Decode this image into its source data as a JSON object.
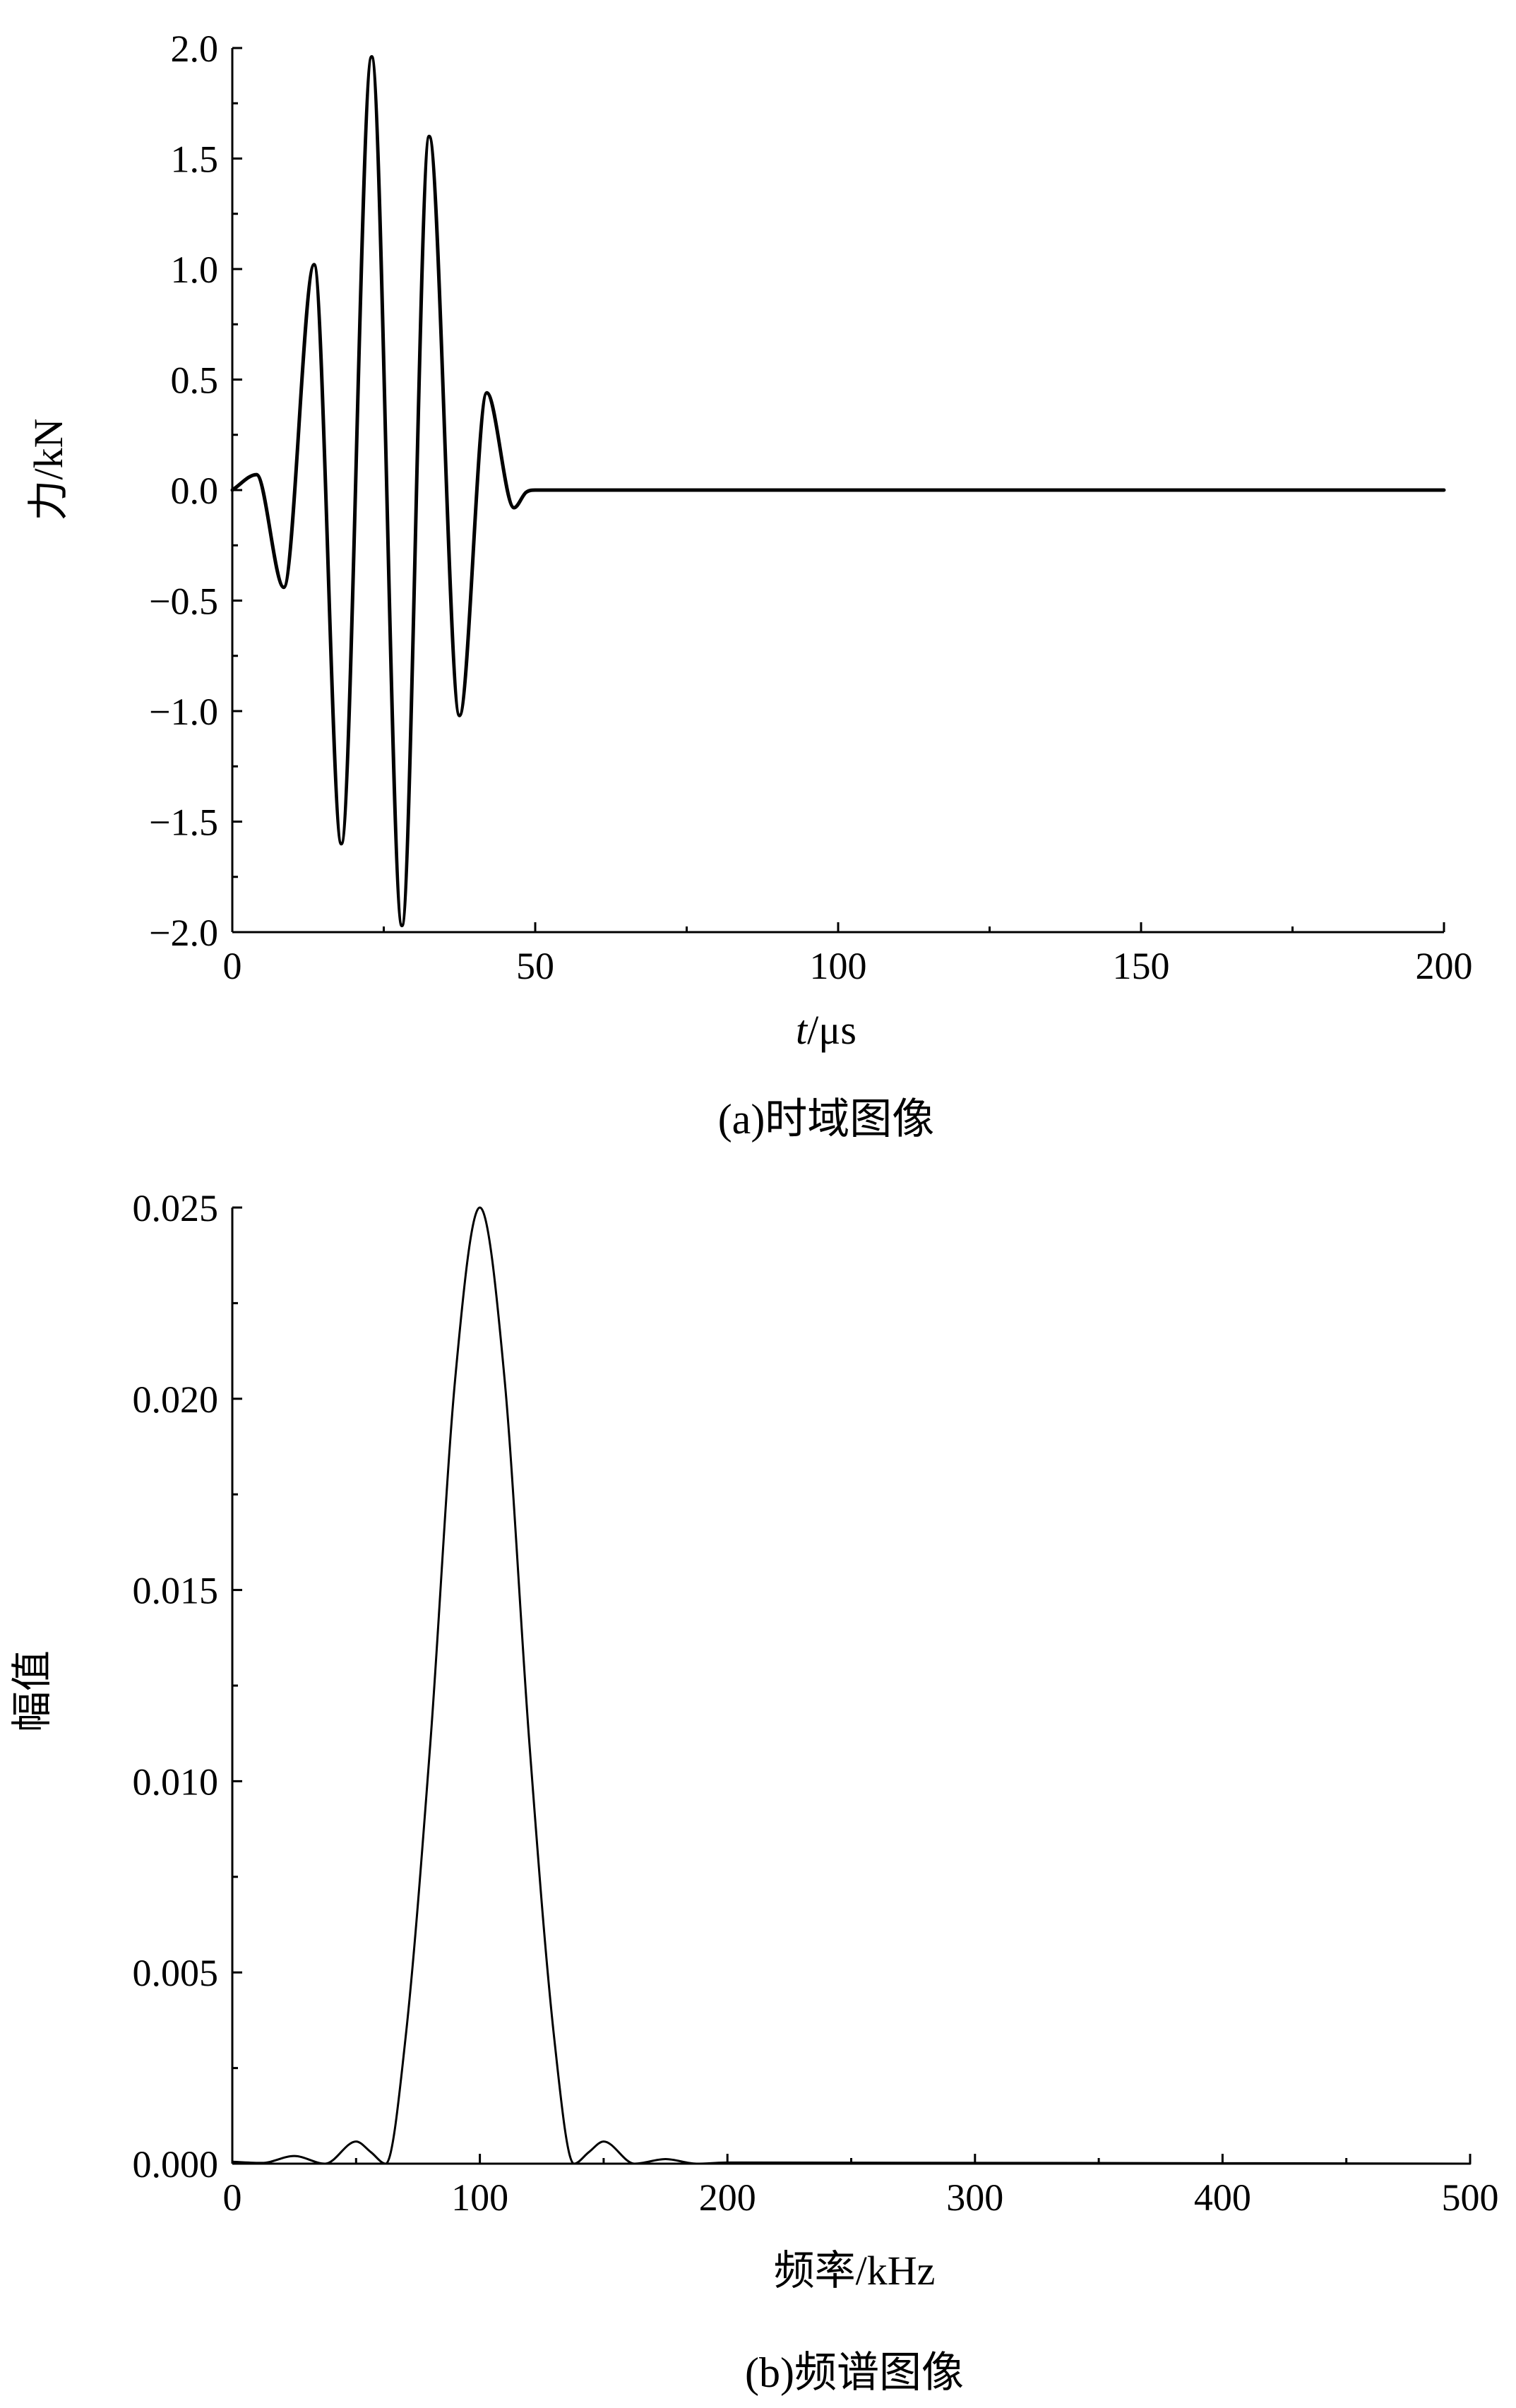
{
  "chart_data": [
    {
      "type": "line",
      "caption": "(a)时域图像",
      "xlabel_italic": "t",
      "xlabel_rest": "/μs",
      "ylabel": "力/kN",
      "xlim": [
        0,
        200
      ],
      "ylim": [
        -2.0,
        2.0
      ],
      "x_ticks": [
        0,
        50,
        100,
        150,
        200
      ],
      "x_tick_labels": [
        "0",
        "50",
        "100",
        "150",
        "200"
      ],
      "y_ticks": [
        -2.0,
        -1.5,
        -1.0,
        -0.5,
        0.0,
        0.5,
        1.0,
        1.5,
        2.0
      ],
      "y_tick_labels": [
        "−2.0",
        "−1.5",
        "−1.0",
        "−0.5",
        "0.0",
        "0.5",
        "1.0",
        "1.5",
        "2.0"
      ],
      "grid": false,
      "series": [
        {
          "x": [
            0,
            4,
            8.5,
            13.5,
            18,
            23,
            28,
            32.5,
            37.5,
            42,
            46.5,
            48.5,
            50,
            200
          ],
          "y": [
            0.0,
            0.07,
            -0.44,
            1.02,
            -1.6,
            1.96,
            -1.97,
            1.6,
            -1.02,
            0.44,
            -0.08,
            -0.01,
            0.0,
            0.0
          ]
        }
      ]
    },
    {
      "type": "line",
      "caption": "(b)频谱图像",
      "xlabel": "频率/kHz",
      "ylabel": "幅值",
      "xlim": [
        0,
        500
      ],
      "ylim": [
        0.0,
        0.025
      ],
      "x_ticks": [
        0,
        100,
        200,
        300,
        400,
        500
      ],
      "x_tick_labels": [
        "0",
        "100",
        "200",
        "300",
        "400",
        "500"
      ],
      "y_ticks": [
        0.0,
        0.005,
        0.01,
        0.015,
        0.02,
        0.025
      ],
      "y_tick_labels": [
        "0.000",
        "0.005",
        "0.010",
        "0.015",
        "0.020",
        "0.025"
      ],
      "grid": false,
      "series": [
        {
          "x": [
            0,
            12,
            25,
            37.5,
            50,
            56,
            62,
            70,
            80,
            90,
            100,
            110,
            120,
            130,
            138,
            144,
            150,
            162.5,
            175,
            187.5,
            200,
            500
          ],
          "y": [
            5e-05,
            2e-05,
            0.0002,
            0.0,
            0.00058,
            0.0003,
            0.0,
            0.0033,
            0.011,
            0.0205,
            0.025,
            0.0205,
            0.011,
            0.0033,
            0.0,
            0.0003,
            0.00058,
            0.0,
            0.00012,
            0.0,
            3e-05,
            0.0
          ]
        }
      ]
    }
  ]
}
